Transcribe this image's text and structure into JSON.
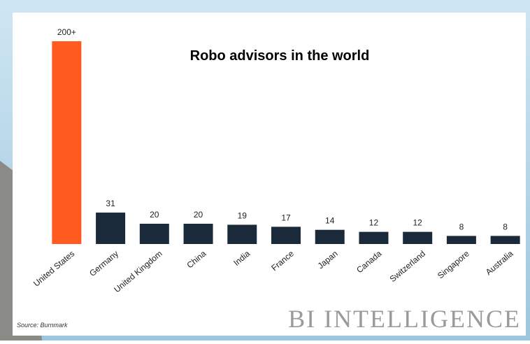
{
  "chart_data": {
    "type": "bar",
    "title": "Robo advisors in the world",
    "categories": [
      "United States",
      "Germany",
      "United Kingdom",
      "China",
      "India",
      "France",
      "Japan",
      "Canada",
      "Switzerland",
      "Singapore",
      "Australia"
    ],
    "values": [
      200,
      31,
      20,
      20,
      19,
      17,
      14,
      12,
      12,
      8,
      8
    ],
    "value_labels": [
      "200+",
      "31",
      "20",
      "20",
      "19",
      "17",
      "14",
      "12",
      "12",
      "8",
      "8"
    ],
    "colors": [
      "#ff5a1f",
      "#1b2a3b",
      "#1b2a3b",
      "#1b2a3b",
      "#1b2a3b",
      "#1b2a3b",
      "#1b2a3b",
      "#1b2a3b",
      "#1b2a3b",
      "#1b2a3b",
      "#1b2a3b"
    ],
    "source": "Source: Burnmark",
    "watermark": "BI INTELLIGENCE"
  }
}
